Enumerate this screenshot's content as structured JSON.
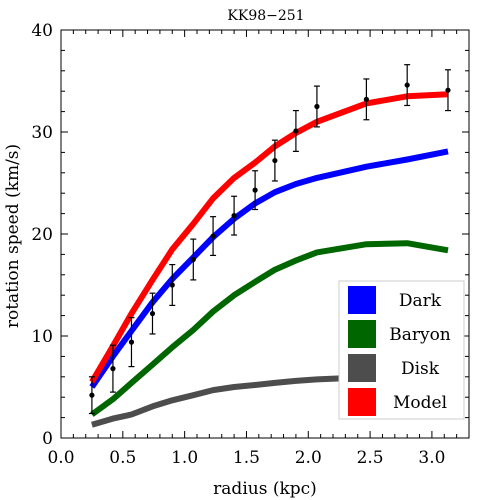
{
  "chart_data": {
    "type": "line",
    "title": "KK98−251",
    "xlabel": "radius (kpc)",
    "ylabel": "rotation speed (km/s)",
    "xlim": [
      0,
      3.3
    ],
    "ylim": [
      0,
      40
    ],
    "xticks": [
      "0.0",
      "0.5",
      "1.0",
      "1.5",
      "2.0",
      "2.5",
      "3.0"
    ],
    "yticks": [
      "0",
      "10",
      "20",
      "30",
      "40"
    ],
    "grid": false,
    "legend_position": "bottom-right",
    "series": [
      {
        "name": "Dark",
        "color": "#0000ff",
        "x": [
          0.25,
          0.42,
          0.57,
          0.74,
          0.9,
          1.07,
          1.23,
          1.4,
          1.57,
          1.73,
          1.9,
          2.07,
          2.47,
          2.8,
          3.13
        ],
        "y": [
          5.0,
          8.0,
          10.5,
          13.3,
          15.6,
          17.7,
          19.7,
          21.5,
          23.0,
          24.1,
          24.9,
          25.5,
          26.6,
          27.3,
          28.1
        ]
      },
      {
        "name": "Baryon",
        "color": "#006600",
        "x": [
          0.25,
          0.42,
          0.57,
          0.74,
          0.9,
          1.07,
          1.23,
          1.4,
          1.57,
          1.73,
          1.9,
          2.07,
          2.47,
          2.8,
          3.13
        ],
        "y": [
          2.3,
          3.8,
          5.4,
          7.2,
          8.9,
          10.6,
          12.4,
          14.0,
          15.3,
          16.5,
          17.4,
          18.2,
          19.0,
          19.1,
          18.4
        ]
      },
      {
        "name": "Disk",
        "color": "#4d4d4d",
        "x": [
          0.25,
          0.42,
          0.57,
          0.74,
          0.9,
          1.07,
          1.23,
          1.4,
          1.57,
          1.73,
          1.9,
          2.07,
          2.47,
          2.8,
          3.13
        ],
        "y": [
          1.3,
          1.9,
          2.3,
          3.1,
          3.7,
          4.2,
          4.7,
          5.0,
          5.2,
          5.4,
          5.6,
          5.75,
          5.95,
          6.1,
          6.2
        ]
      },
      {
        "name": "Model",
        "color": "#ff0000",
        "x": [
          0.25,
          0.42,
          0.57,
          0.74,
          0.9,
          1.07,
          1.23,
          1.4,
          1.57,
          1.73,
          1.9,
          2.07,
          2.47,
          2.8,
          3.13
        ],
        "y": [
          5.5,
          9.0,
          12.2,
          15.5,
          18.5,
          21.0,
          23.5,
          25.5,
          27.0,
          28.6,
          29.9,
          31.0,
          32.8,
          33.5,
          33.7
        ]
      }
    ],
    "observations": {
      "x": [
        0.25,
        0.42,
        0.57,
        0.74,
        0.9,
        1.07,
        1.23,
        1.4,
        1.57,
        1.73,
        1.9,
        2.07,
        2.47,
        2.8,
        3.13
      ],
      "y": [
        4.2,
        6.8,
        9.4,
        12.2,
        15.0,
        17.5,
        19.8,
        21.8,
        24.3,
        27.2,
        30.1,
        32.5,
        33.2,
        34.6,
        34.1
      ],
      "err": [
        1.8,
        2.3,
        2.4,
        2.0,
        2.0,
        2.0,
        1.9,
        1.9,
        1.9,
        2.0,
        2.0,
        2.0,
        2.0,
        2.0,
        2.0
      ]
    }
  }
}
